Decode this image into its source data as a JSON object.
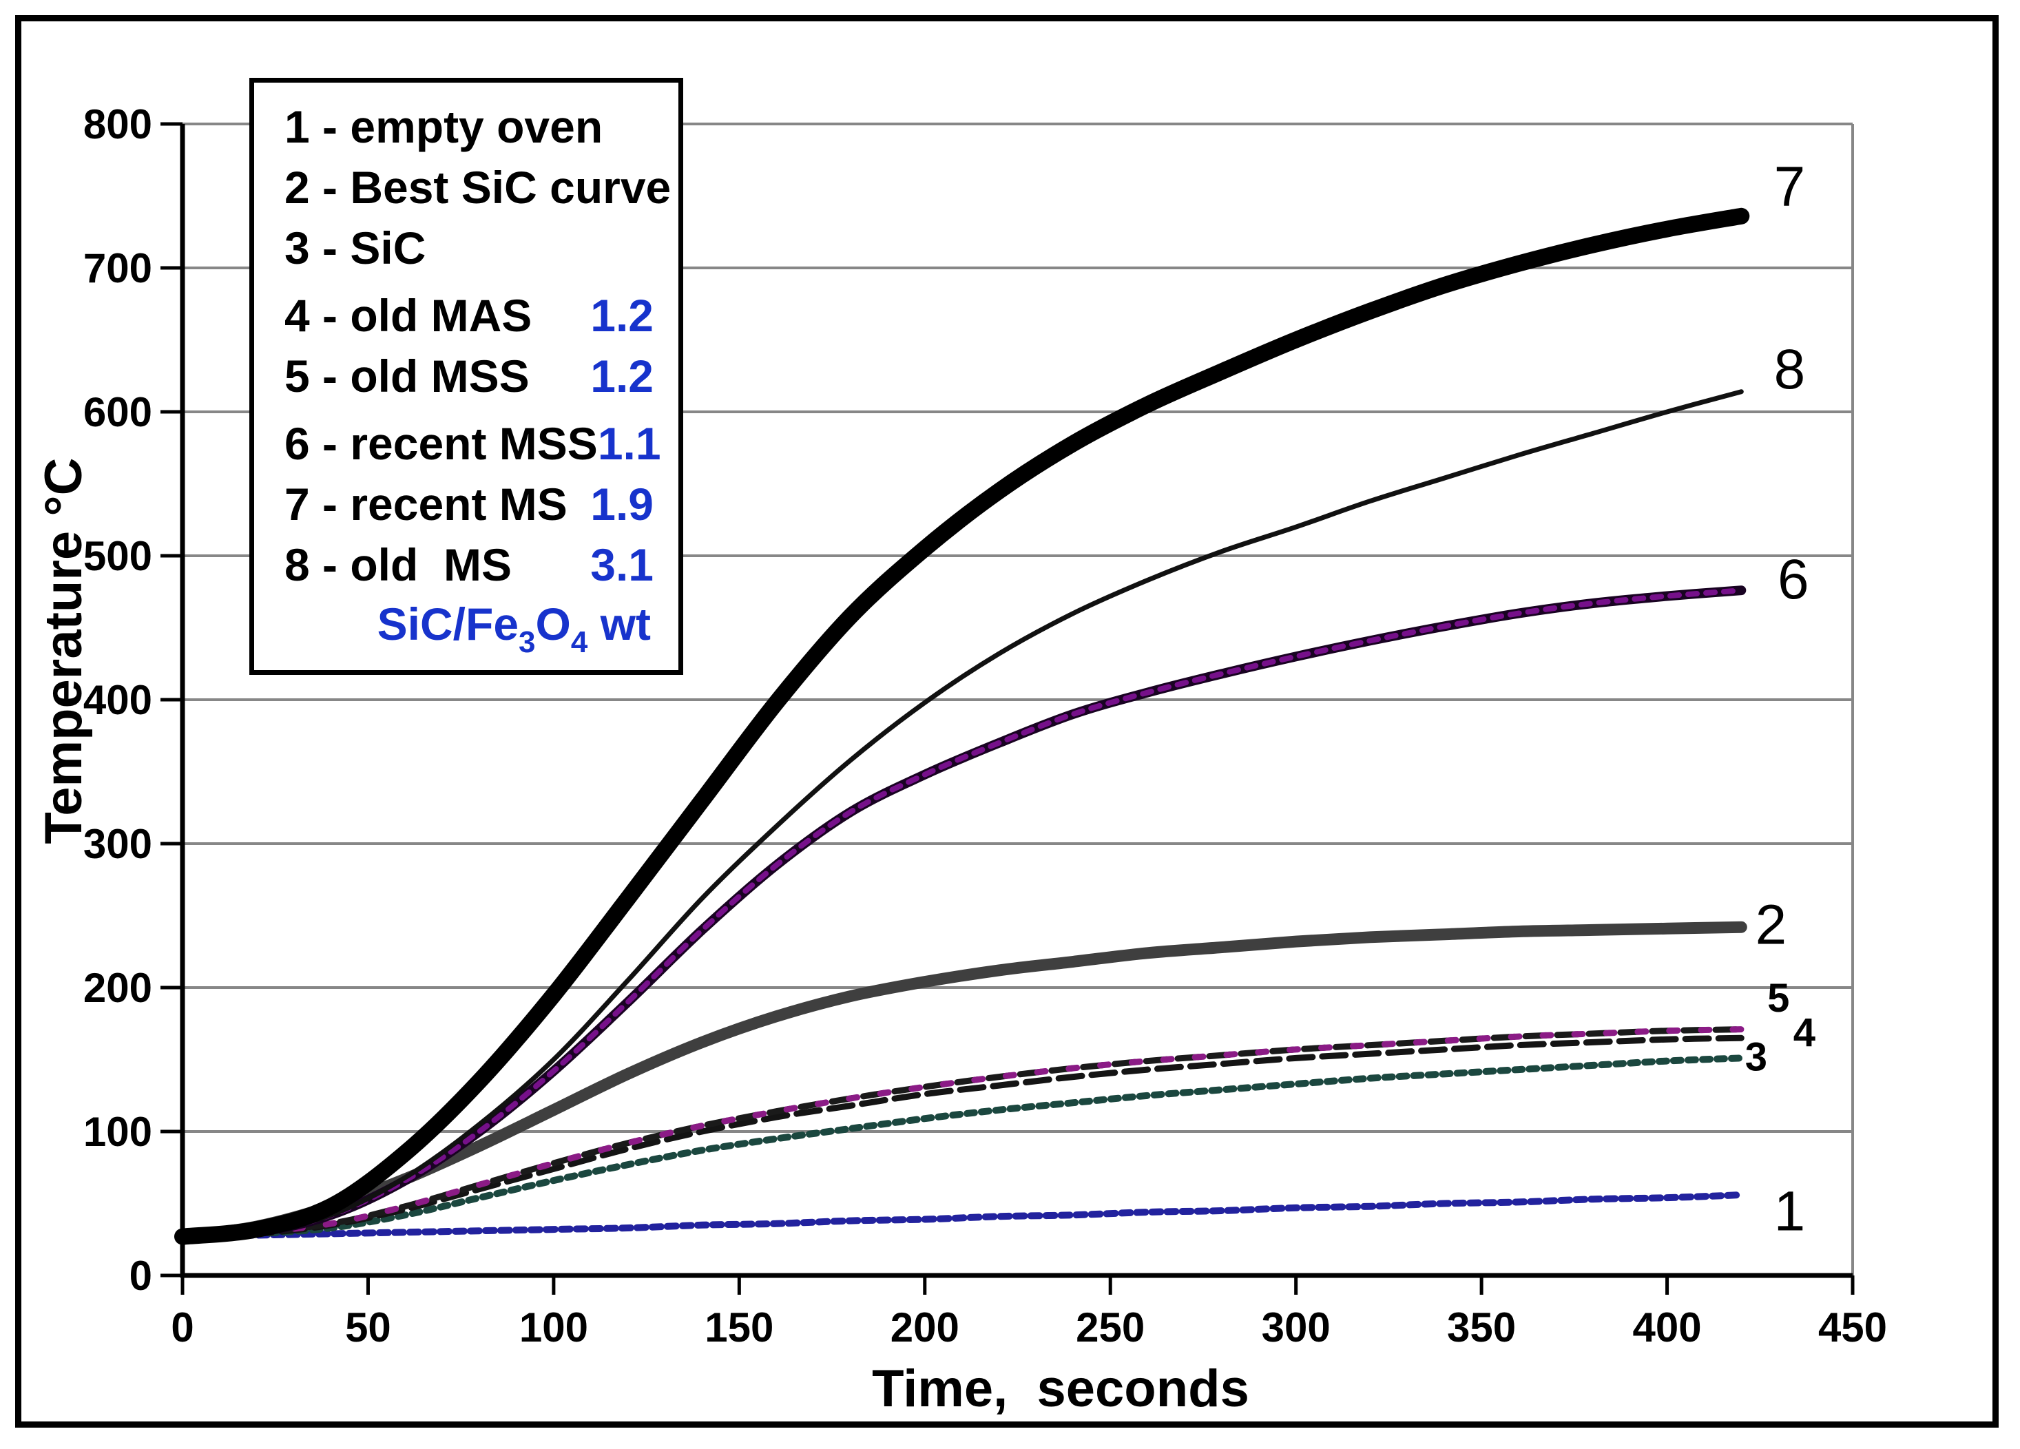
{
  "window": {
    "background": "#ffffff",
    "frame_color": "#000000"
  },
  "chart_data": {
    "type": "line",
    "title": "",
    "xlabel": "Time,  seconds",
    "ylabel": "Temperature °C",
    "xlim": [
      0,
      450
    ],
    "ylim": [
      0,
      800
    ],
    "xticks": [
      0,
      50,
      100,
      150,
      200,
      250,
      300,
      350,
      400,
      450
    ],
    "yticks": [
      0,
      100,
      200,
      300,
      400,
      500,
      600,
      700,
      800
    ],
    "grid": true,
    "gridline_color": "#878787",
    "axis_color": "#000000",
    "legend_position": "top-left",
    "x": [
      0,
      20,
      40,
      60,
      80,
      100,
      120,
      140,
      160,
      180,
      200,
      220,
      240,
      260,
      280,
      300,
      320,
      340,
      360,
      380,
      400,
      420
    ],
    "draw_order": [
      1,
      3,
      4,
      5,
      2,
      6,
      8,
      7
    ],
    "series": [
      {
        "id": 1,
        "name": "empty oven",
        "color": "#22229e",
        "width": 10,
        "dash": "13 9",
        "values": [
          27,
          28,
          29,
          30,
          31,
          32,
          33,
          35,
          36,
          38,
          39,
          41,
          42,
          44,
          45,
          47,
          48,
          50,
          51,
          53,
          54,
          56
        ],
        "end_label": "1",
        "label_pos": [
          433,
          45
        ],
        "label_size": 82,
        "label_weight": 400
      },
      {
        "id": 2,
        "name": "Best SiC curve",
        "color": "#3f3f3f",
        "width": 17,
        "dash": "",
        "values": [
          27,
          34,
          48,
          67,
          90,
          115,
          140,
          162,
          180,
          194,
          204,
          212,
          218,
          224,
          228,
          232,
          235,
          237,
          239,
          240,
          241,
          242
        ],
        "end_label": "2",
        "label_pos": [
          428,
          244
        ],
        "label_size": 82,
        "label_weight": 400
      },
      {
        "id": 3,
        "name": "SiC",
        "color": "#1b473f",
        "width": 10,
        "dash": "11 10",
        "values": [
          27,
          29,
          33,
          42,
          54,
          66,
          77,
          87,
          95,
          102,
          109,
          115,
          120,
          125,
          129,
          133,
          137,
          140,
          143,
          146,
          149,
          151
        ],
        "end_label": "3",
        "label_pos": [
          424,
          152
        ],
        "label_size": 58,
        "label_weight": 700
      },
      {
        "id": 4,
        "name": "old MAS",
        "color": "#141414",
        "width": 9,
        "dash": "34 14",
        "values": [
          27,
          29,
          35,
          46,
          60,
          74,
          88,
          100,
          110,
          118,
          126,
          132,
          138,
          143,
          147,
          151,
          154,
          157,
          160,
          162,
          164,
          165
        ],
        "end_label": "4",
        "label_pos": [
          437,
          169
        ],
        "label_size": 58,
        "label_weight": 700
      },
      {
        "id": 5,
        "name": "old MSS",
        "color": "#1a1a1a",
        "width": 9,
        "dash": "30 16",
        "overlay": {
          "color": "#8b1b86",
          "width": 9,
          "dash": "12 34",
          "offset": 21
        },
        "values": [
          27,
          30,
          36,
          48,
          63,
          78,
          92,
          104,
          114,
          123,
          131,
          138,
          144,
          149,
          153,
          157,
          160,
          163,
          166,
          168,
          170,
          171
        ],
        "end_label": "5",
        "label_pos": [
          430,
          193
        ],
        "label_size": 58,
        "label_weight": 700
      },
      {
        "id": 6,
        "name": "recent MSS",
        "color": "#190322",
        "width": 14,
        "dash": "",
        "overlay": {
          "color": "#76108a",
          "width": 8,
          "dash": "13 13",
          "offset": 0
        },
        "values": [
          27,
          30,
          42,
          66,
          100,
          142,
          190,
          240,
          285,
          322,
          348,
          370,
          390,
          405,
          418,
          430,
          441,
          451,
          460,
          467,
          472,
          476
        ],
        "end_label": "6",
        "label_pos": [
          434,
          484
        ],
        "label_size": 82,
        "label_weight": 400
      },
      {
        "id": 7,
        "name": "recent MS",
        "color": "#000000",
        "width": 24,
        "dash": "",
        "values": [
          27,
          32,
          48,
          85,
          135,
          195,
          262,
          330,
          398,
          458,
          505,
          545,
          578,
          605,
          628,
          650,
          670,
          688,
          703,
          716,
          727,
          736
        ],
        "end_label": "7",
        "label_pos": [
          433,
          757
        ],
        "label_size": 82,
        "label_weight": 400
      },
      {
        "id": 8,
        "name": "old MS",
        "color": "#111111",
        "width": 7,
        "dash": "",
        "values": [
          27,
          30,
          42,
          68,
          105,
          150,
          205,
          262,
          312,
          358,
          398,
          432,
          460,
          483,
          503,
          520,
          538,
          554,
          570,
          585,
          600,
          614
        ],
        "end_label": "8",
        "label_pos": [
          433,
          630
        ],
        "label_size": 82,
        "label_weight": 400
      }
    ]
  },
  "legend": {
    "value_color": "#1733cc",
    "rows": [
      {
        "label": "1 - empty oven",
        "value": ""
      },
      {
        "label": "2 - Best SiC curve",
        "value": ""
      },
      {
        "label": "3 - SiC",
        "value": ""
      },
      {
        "label": "4 - old MAS",
        "value": "1.2"
      },
      {
        "label": "5 - old MSS",
        "value": "1.2"
      },
      {
        "label": "6 - recent MSS",
        "value": "1.1"
      },
      {
        "label": "7 - recent MS",
        "value": "1.9"
      },
      {
        "label": "8 - old  MS",
        "value": "3.1"
      }
    ],
    "formula": {
      "pre": "SiC/Fe",
      "sub1": "3",
      "mid": "O",
      "sub2": "4",
      "post": " wt"
    }
  }
}
